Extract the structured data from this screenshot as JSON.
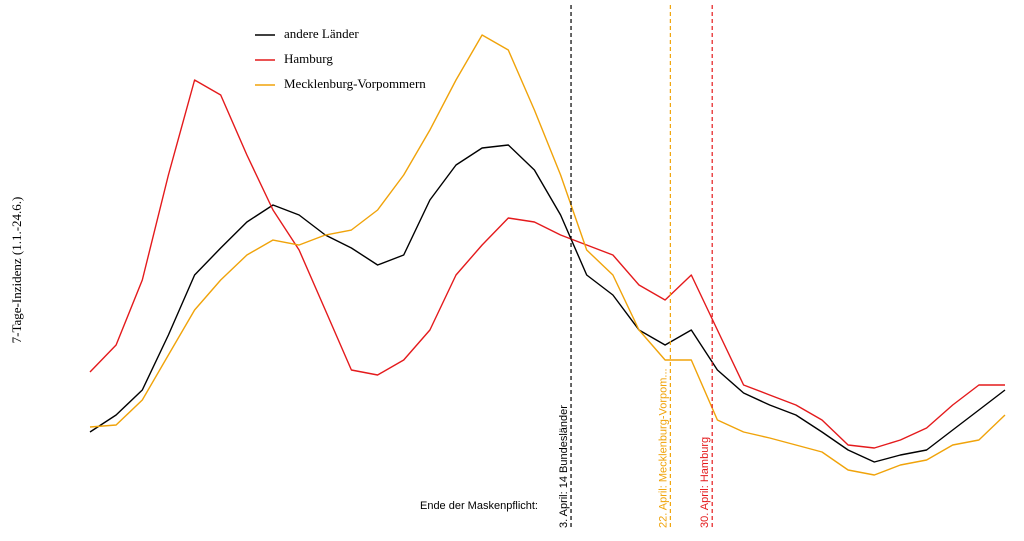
{
  "chart_data": {
    "type": "line",
    "y_label": "7-Tage-Inzidenz (1.1.-24.6.)",
    "x": [
      1,
      6,
      11,
      16,
      21,
      26,
      31,
      36,
      41,
      46,
      51,
      56,
      61,
      66,
      71,
      76,
      81,
      86,
      91,
      96,
      101,
      106,
      111,
      116,
      121,
      126,
      131,
      136,
      141,
      146,
      151,
      156,
      161,
      166,
      171,
      176
    ],
    "xlim": [
      1,
      176
    ],
    "ylim": [
      0,
      460
    ],
    "series": [
      {
        "name": "andere Länder",
        "color": "#000000",
        "values": [
          48,
          65,
          90,
          145,
          205,
          232,
          258,
          275,
          265,
          245,
          232,
          215,
          225,
          280,
          315,
          332,
          335,
          310,
          265,
          205,
          185,
          150,
          135,
          150,
          110,
          87,
          75,
          65,
          48,
          30,
          18,
          25,
          30,
          50,
          70,
          90
        ]
      },
      {
        "name": "Hamburg",
        "color": "#e41a1c",
        "values": [
          108,
          135,
          200,
          305,
          400,
          385,
          325,
          270,
          230,
          170,
          110,
          105,
          120,
          150,
          205,
          235,
          262,
          258,
          245,
          235,
          225,
          195,
          180,
          205,
          150,
          95,
          85,
          75,
          60,
          35,
          32,
          40,
          52,
          75,
          95,
          95
        ]
      },
      {
        "name": "Mecklenburg-Vorpommern",
        "color": "#f0a30a",
        "values": [
          53,
          55,
          80,
          125,
          170,
          200,
          225,
          240,
          235,
          245,
          250,
          270,
          305,
          350,
          400,
          445,
          430,
          370,
          305,
          230,
          205,
          150,
          120,
          120,
          60,
          48,
          42,
          35,
          28,
          10,
          5,
          15,
          20,
          35,
          40,
          65
        ]
      }
    ],
    "annotation_title": "Ende der Maskenpflicht:",
    "annotations": [
      {
        "x": 93,
        "label": "3. April: 14 Bundesländer",
        "color": "#000000"
      },
      {
        "x": 112,
        "label": "22. April: Mecklenburg-Vorpom...",
        "color": "#f0a30a"
      },
      {
        "x": 120,
        "label": "30. April: Hamburg",
        "color": "#e41a1c"
      }
    ]
  }
}
